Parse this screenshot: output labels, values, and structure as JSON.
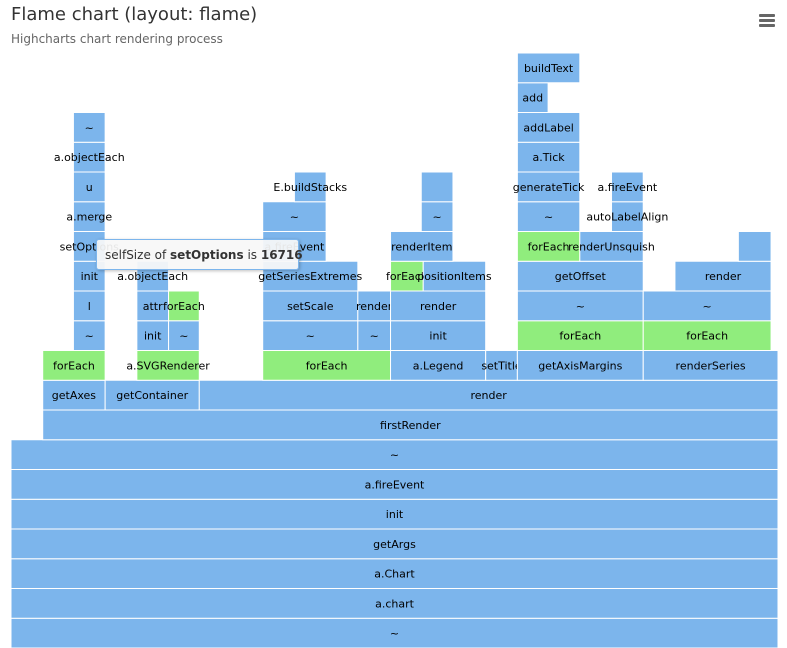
{
  "chart_data": {
    "type": "flame",
    "title": "Flame chart (layout: flame)",
    "subtitle": "Highcharts chart rendering process",
    "colors": {
      "default": "#7cb5ec",
      "highlight": "#90ed7d",
      "text": "#000000",
      "border": "#ffffff"
    },
    "units": 774,
    "nodes": [
      {
        "name": "~",
        "level": 0,
        "start": 0,
        "width": 774
      },
      {
        "name": "a.chart",
        "level": 1,
        "start": 0,
        "width": 774
      },
      {
        "name": "a.Chart",
        "level": 2,
        "start": 0,
        "width": 774
      },
      {
        "name": "getArgs",
        "level": 3,
        "start": 0,
        "width": 774
      },
      {
        "name": "init",
        "level": 4,
        "start": 0,
        "width": 774
      },
      {
        "name": "a.fireEvent",
        "level": 5,
        "start": 0,
        "width": 774
      },
      {
        "name": "~",
        "level": 6,
        "start": 0,
        "width": 774
      },
      {
        "name": "firstRender",
        "level": 7,
        "start": 32,
        "width": 742
      },
      {
        "name": "getAxes",
        "level": 8,
        "start": 32,
        "width": 63
      },
      {
        "name": "getContainer",
        "level": 8,
        "start": 95,
        "width": 95
      },
      {
        "name": "render",
        "level": 8,
        "start": 190,
        "width": 584
      },
      {
        "name": "forEach",
        "level": 9,
        "start": 32,
        "width": 63,
        "highlight": true
      },
      {
        "name": "a.SVGRenderer",
        "level": 9,
        "start": 127,
        "width": 63,
        "highlight": true
      },
      {
        "name": "forEach",
        "level": 9,
        "start": 254,
        "width": 129,
        "highlight": true
      },
      {
        "name": "a.Legend",
        "level": 9,
        "start": 383,
        "width": 96
      },
      {
        "name": "setTitle",
        "level": 9,
        "start": 479,
        "width": 32
      },
      {
        "name": "getAxisMargins",
        "level": 9,
        "start": 511,
        "width": 127
      },
      {
        "name": "renderSeries",
        "level": 9,
        "start": 638,
        "width": 136
      },
      {
        "name": "~",
        "level": 10,
        "start": 63,
        "width": 32
      },
      {
        "name": "init",
        "level": 10,
        "start": 127,
        "width": 32
      },
      {
        "name": "~",
        "level": 10,
        "start": 159,
        "width": 31
      },
      {
        "name": "~",
        "level": 10,
        "start": 254,
        "width": 96
      },
      {
        "name": "~",
        "level": 10,
        "start": 350,
        "width": 33
      },
      {
        "name": "init",
        "level": 10,
        "start": 383,
        "width": 96
      },
      {
        "name": "forEach",
        "level": 10,
        "start": 511,
        "width": 127,
        "highlight": true
      },
      {
        "name": "forEach",
        "level": 10,
        "start": 638,
        "width": 129,
        "highlight": true
      },
      {
        "name": "l",
        "level": 11,
        "start": 63,
        "width": 32
      },
      {
        "name": "attr",
        "level": 11,
        "start": 127,
        "width": 32
      },
      {
        "name": "forEach",
        "level": 11,
        "start": 159,
        "width": 31,
        "highlight": true
      },
      {
        "name": "setScale",
        "level": 11,
        "start": 254,
        "width": 96
      },
      {
        "name": "render",
        "level": 11,
        "start": 350,
        "width": 33
      },
      {
        "name": "render",
        "level": 11,
        "start": 383,
        "width": 96
      },
      {
        "name": "~",
        "level": 11,
        "start": 511,
        "width": 127
      },
      {
        "name": "~",
        "level": 11,
        "start": 638,
        "width": 129
      },
      {
        "name": "init",
        "level": 12,
        "start": 63,
        "width": 32
      },
      {
        "name": "a.objectEach",
        "level": 12,
        "start": 127,
        "width": 32
      },
      {
        "name": "getSeriesExtremes",
        "level": 12,
        "start": 254,
        "width": 96
      },
      {
        "name": "forEach",
        "level": 12,
        "start": 383,
        "width": 33,
        "highlight": true
      },
      {
        "name": "positionItems",
        "level": 12,
        "start": 416,
        "width": 63
      },
      {
        "name": "getOffset",
        "level": 12,
        "start": 511,
        "width": 127
      },
      {
        "name": "render",
        "level": 12,
        "start": 670,
        "width": 97
      },
      {
        "name": "setOptions",
        "level": 13,
        "start": 63,
        "width": 32
      },
      {
        "name": "a.fireEvent",
        "level": 13,
        "start": 254,
        "width": 64
      },
      {
        "name": "renderItem",
        "level": 13,
        "start": 383,
        "width": 63
      },
      {
        "name": "forEach",
        "level": 13,
        "start": 511,
        "width": 63,
        "highlight": true
      },
      {
        "name": "renderUnsquish",
        "level": 13,
        "start": 574,
        "width": 64
      },
      {
        "name": "",
        "level": 13,
        "start": 734,
        "width": 33
      },
      {
        "name": "a.merge",
        "level": 14,
        "start": 63,
        "width": 32
      },
      {
        "name": "~",
        "level": 14,
        "start": 254,
        "width": 64
      },
      {
        "name": "~",
        "level": 14,
        "start": 414,
        "width": 32
      },
      {
        "name": "~",
        "level": 14,
        "start": 511,
        "width": 63
      },
      {
        "name": "autoLabelAlign",
        "level": 14,
        "start": 606,
        "width": 32
      },
      {
        "name": "u",
        "level": 15,
        "start": 63,
        "width": 32
      },
      {
        "name": "E.buildStacks",
        "level": 15,
        "start": 286,
        "width": 32
      },
      {
        "name": "",
        "level": 15,
        "start": 414,
        "width": 32
      },
      {
        "name": "generateTick",
        "level": 15,
        "start": 511,
        "width": 63
      },
      {
        "name": "a.fireEvent",
        "level": 15,
        "start": 606,
        "width": 32
      },
      {
        "name": "a.objectEach",
        "level": 16,
        "start": 63,
        "width": 32
      },
      {
        "name": "a.Tick",
        "level": 16,
        "start": 511,
        "width": 63
      },
      {
        "name": "~",
        "level": 17,
        "start": 63,
        "width": 32
      },
      {
        "name": "addLabel",
        "level": 17,
        "start": 511,
        "width": 63
      },
      {
        "name": "add",
        "level": 18,
        "start": 511,
        "width": 31
      },
      {
        "name": "buildText",
        "level": 19,
        "start": 511,
        "width": 63
      }
    ]
  },
  "tooltip": {
    "prefix": "selfSize of ",
    "name": "setOptions",
    "middle": " is ",
    "value": "16716"
  },
  "menu_icon": "hamburger-menu-icon"
}
